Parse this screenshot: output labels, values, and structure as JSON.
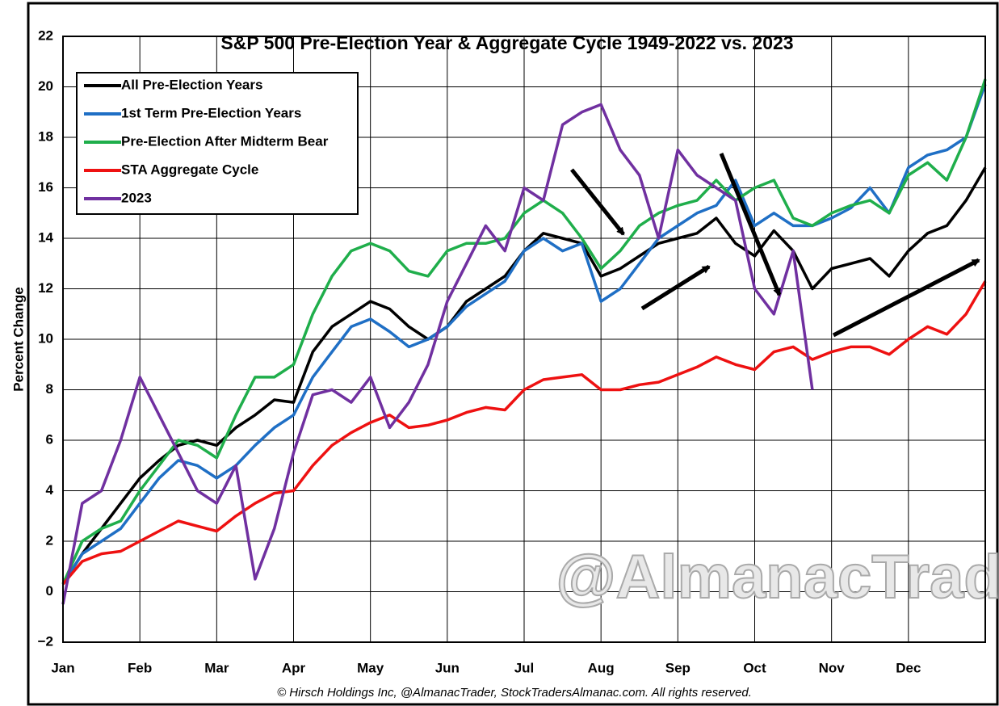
{
  "chart_data": {
    "type": "line",
    "title": "S&P 500 Pre-Election Year & Aggregate Cycle 1949-2022 vs. 2023",
    "y_label": "Percent Change",
    "watermark": "@AlmanacTrader",
    "footer": "© Hirsch Holdings Inc, @AlmanacTrader, StockTradersAlmanac.com. All rights reserved.",
    "categories": [
      "Jan",
      null,
      null,
      null,
      "Feb",
      null,
      null,
      null,
      "Mar",
      null,
      null,
      null,
      "Apr",
      null,
      null,
      null,
      "May",
      null,
      null,
      null,
      "Jun",
      null,
      null,
      null,
      "Jul",
      null,
      null,
      null,
      "Aug",
      null,
      null,
      null,
      "Sep",
      null,
      null,
      null,
      "Oct",
      null,
      null,
      null,
      "Nov",
      null,
      null,
      null,
      "Dec",
      null,
      null,
      null,
      null
    ],
    "ylim": [
      -2,
      22
    ],
    "yticks": [
      {
        "value": -2,
        "label": "−2"
      },
      0,
      2,
      4,
      6,
      8,
      10,
      12,
      14,
      16,
      18,
      20,
      22
    ],
    "grid": true,
    "legend": "top-left",
    "series": [
      {
        "name": "All Pre-Election Years",
        "color": "#000000",
        "values": [
          0.3,
          1.5,
          2.5,
          3.5,
          4.5,
          5.2,
          5.8,
          6.0,
          5.8,
          6.5,
          7.0,
          7.6,
          7.5,
          9.5,
          10.5,
          11.0,
          11.5,
          11.2,
          10.5,
          10.0,
          10.5,
          11.5,
          12.0,
          12.5,
          13.5,
          14.2,
          14.0,
          13.8,
          12.5,
          12.8,
          13.3,
          13.8,
          14.0,
          14.2,
          14.8,
          13.8,
          13.3,
          14.3,
          13.5,
          12.0,
          12.8,
          13.0,
          13.2,
          12.5,
          13.5,
          14.2,
          14.5,
          15.5,
          16.8
        ]
      },
      {
        "name": "1st Term Pre-Election Years",
        "color": "#1f6fc5",
        "values": [
          0.3,
          1.5,
          2.0,
          2.5,
          3.5,
          4.5,
          5.2,
          5.0,
          4.5,
          5.0,
          5.8,
          6.5,
          7.0,
          8.5,
          9.5,
          10.5,
          10.8,
          10.3,
          9.7,
          10.0,
          10.5,
          11.3,
          11.8,
          12.3,
          13.5,
          14.0,
          13.5,
          13.8,
          11.5,
          12.0,
          13.0,
          14.0,
          14.5,
          15.0,
          15.3,
          16.3,
          14.5,
          15.0,
          14.5,
          14.5,
          14.8,
          15.2,
          16.0,
          15.0,
          16.8,
          17.3,
          17.5,
          18.0,
          20.1
        ]
      },
      {
        "name": "Pre-Election After Midterm Bear",
        "color": "#1fae4b",
        "values": [
          0.3,
          2.0,
          2.5,
          2.8,
          4.0,
          5.0,
          6.0,
          5.8,
          5.3,
          7.0,
          8.5,
          8.5,
          9.0,
          11.0,
          12.5,
          13.5,
          13.8,
          13.5,
          12.7,
          12.5,
          13.5,
          13.8,
          13.8,
          14.0,
          15.0,
          15.5,
          15.0,
          14.0,
          12.8,
          13.5,
          14.5,
          15.0,
          15.3,
          15.5,
          16.3,
          15.5,
          16.0,
          16.3,
          14.8,
          14.5,
          15.0,
          15.3,
          15.5,
          15.0,
          16.5,
          17.0,
          16.3,
          18.0,
          20.3
        ]
      },
      {
        "name": "STA Aggregate Cycle",
        "color": "#ee1111",
        "values": [
          0.3,
          1.2,
          1.5,
          1.6,
          2.0,
          2.4,
          2.8,
          2.6,
          2.4,
          3.0,
          3.5,
          3.9,
          4.0,
          5.0,
          5.8,
          6.3,
          6.7,
          7.0,
          6.5,
          6.6,
          6.8,
          7.1,
          7.3,
          7.2,
          8.0,
          8.4,
          8.5,
          8.6,
          8.0,
          8.0,
          8.2,
          8.3,
          8.6,
          8.9,
          9.3,
          9.0,
          8.8,
          9.5,
          9.7,
          9.2,
          9.5,
          9.7,
          9.7,
          9.4,
          10.0,
          10.5,
          10.2,
          11.0,
          12.3
        ]
      },
      {
        "name": "2023",
        "color": "#7030a0",
        "values": [
          -0.5,
          3.5,
          4.0,
          6.0,
          8.5,
          7.0,
          5.5,
          4.0,
          3.5,
          5.0,
          0.5,
          2.5,
          5.5,
          7.8,
          8.0,
          7.5,
          8.5,
          6.5,
          7.5,
          9.0,
          11.5,
          13.0,
          14.5,
          13.5,
          16.0,
          15.5,
          18.5,
          19.0,
          19.3,
          17.5,
          16.5,
          14.0,
          17.5,
          16.5,
          16.0,
          15.5,
          12.0,
          11.0,
          13.5,
          8.0,
          null,
          null,
          null,
          null,
          null,
          null,
          null,
          null,
          null
        ]
      }
    ]
  }
}
